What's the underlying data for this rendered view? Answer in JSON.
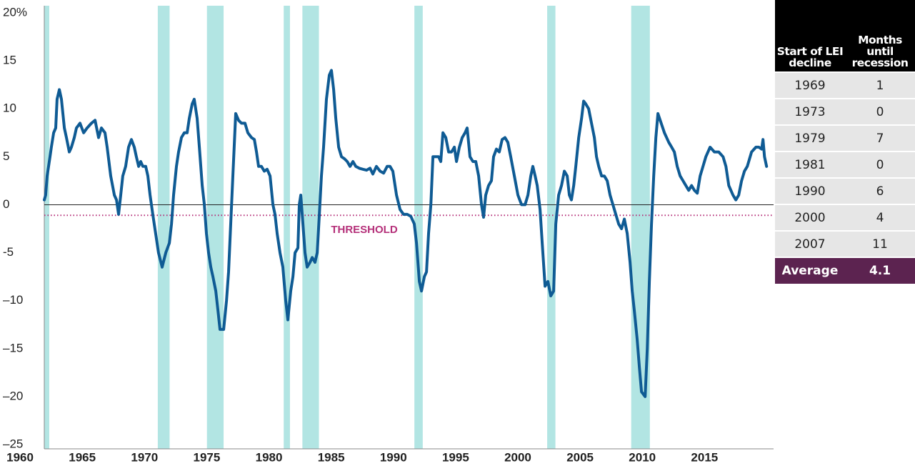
{
  "chart_data": {
    "type": "line",
    "color": "#0f5b94",
    "x": [
      1960.8,
      1960.91,
      1961.03,
      1961.26,
      1961.37,
      1961.55,
      1961.72,
      1961.83,
      1962.01,
      1962.18,
      1962.41,
      1962.58,
      1962.81,
      1962.98,
      1963.21,
      1963.38,
      1963.67,
      1963.96,
      1964.24,
      1964.59,
      1964.88,
      1965.16,
      1965.39,
      1965.68,
      1965.85,
      1966.14,
      1966.43,
      1966.6,
      1966.77,
      1966.94,
      1967.11,
      1967.34,
      1967.57,
      1967.8,
      1968.03,
      1968.2,
      1968.38,
      1968.55,
      1968.72,
      1968.95,
      1969.12,
      1969.3,
      1969.52,
      1969.75,
      1969.98,
      1970.27,
      1970.56,
      1970.85,
      1971.02,
      1971.19,
      1971.42,
      1971.59,
      1971.82,
      1972.05,
      1972.28,
      1972.45,
      1972.68,
      1972.85,
      1973.08,
      1973.26,
      1973.49,
      1973.66,
      1973.83,
      1974.0,
      1974.18,
      1974.35,
      1974.58,
      1974.75,
      1974.92,
      1975.21,
      1975.44,
      1975.61,
      1975.78,
      1975.95,
      1976.18,
      1976.41,
      1976.64,
      1976.93,
      1977.16,
      1977.45,
      1977.68,
      1977.85,
      1978.02,
      1978.25,
      1978.48,
      1978.71,
      1978.94,
      1979.17,
      1979.34,
      1979.51,
      1979.74,
      1979.97,
      1980.2,
      1980.37,
      1980.6,
      1980.78,
      1980.95,
      1981.18,
      1981.29,
      1981.41,
      1981.58,
      1981.75,
      1981.92,
      1982.15,
      1982.33,
      1982.55,
      1982.73,
      1982.9,
      1983.07,
      1983.24,
      1983.47,
      1983.7,
      1983.87,
      1984.05,
      1984.22,
      1984.45,
      1984.68,
      1984.91,
      1985.14,
      1985.37,
      1985.6,
      1985.83,
      1986.11,
      1986.4,
      1986.69,
      1986.97,
      1987.2,
      1987.49,
      1987.78,
      1988.07,
      1988.35,
      1988.58,
      1988.81,
      1989.1,
      1989.39,
      1989.67,
      1989.96,
      1990.25,
      1990.53,
      1990.71,
      1990.94,
      1991.11,
      1991.34,
      1991.51,
      1991.68,
      1991.86,
      1992.03,
      1992.26,
      1992.49,
      1992.66,
      1992.83,
      1993.06,
      1993.29,
      1993.52,
      1993.75,
      1993.92,
      1994.15,
      1994.38,
      1994.61,
      1994.78,
      1995.01,
      1995.24,
      1995.47,
      1995.7,
      1995.93,
      1996.1,
      1996.27,
      1996.5,
      1996.73,
      1996.9,
      1997.13,
      1997.36,
      1997.59,
      1997.82,
      1998.05,
      1998.28,
      1998.57,
      1998.86,
      1999.15,
      1999.43,
      1999.66,
      1999.89,
      2000.06,
      2000.24,
      2000.41,
      2000.64,
      2000.81,
      2001.04,
      2001.27,
      2001.5,
      2001.73,
      2001.9,
      2002.13,
      2002.36,
      2002.59,
      2002.82,
      2002.99,
      2003.16,
      2003.34,
      2003.51,
      2003.74,
      2003.97,
      2004.14,
      2004.31,
      2004.54,
      2004.77,
      2005.0,
      2005.17,
      2005.35,
      2005.58,
      2005.8,
      2006.03,
      2006.26,
      2006.49,
      2006.72,
      2006.95,
      2007.18,
      2007.41,
      2007.64,
      2007.87,
      2008.04,
      2008.21,
      2008.44,
      2008.62,
      2008.79,
      2009.08,
      2009.25,
      2009.42,
      2009.59,
      2009.77,
      2009.94,
      2010.11,
      2010.63,
      2010.98,
      2011.21,
      2011.43,
      2011.66,
      2011.89,
      2012.12,
      2012.35,
      2012.58,
      2012.81,
      2013.04,
      2013.27,
      2013.5,
      2013.73,
      2013.96,
      2014.3,
      2014.65,
      2014.99,
      2015.34,
      2015.57,
      2015.8,
      2016.14,
      2016.37,
      2016.6,
      2016.83,
      2017.06,
      2017.29,
      2017.63,
      2017.98,
      2018.21,
      2018.44,
      2018.55,
      2018.67,
      2018.84
    ],
    "values": [
      0.5,
      1,
      3,
      5,
      6,
      7.5,
      8,
      11,
      12,
      11,
      8,
      7,
      5.5,
      6,
      7,
      8,
      8.5,
      7.5,
      8,
      8.5,
      8.8,
      7,
      8,
      7.5,
      6,
      3,
      1,
      0.5,
      -1,
      1,
      3,
      4,
      6,
      6.8,
      6,
      5,
      4,
      4.5,
      4,
      4,
      3,
      1,
      -1,
      -3,
      -5,
      -6.5,
      -5,
      -4,
      -2,
      1,
      4,
      5.5,
      7,
      7.5,
      7.5,
      9,
      10.5,
      11,
      9,
      6,
      2,
      0,
      -3,
      -5,
      -6.5,
      -7.5,
      -9,
      -11,
      -13,
      -13,
      -10,
      -7,
      -2,
      3,
      9.5,
      8.8,
      8.5,
      8.5,
      7.5,
      7,
      6.8,
      5.5,
      4,
      4,
      3.5,
      3.7,
      3,
      0,
      -1,
      -3,
      -5,
      -6.5,
      -10,
      -12,
      -9,
      -7.5,
      -5,
      -4.5,
      0,
      1,
      -2,
      -5,
      -6.5,
      -6,
      -5.5,
      -6,
      -5,
      -1,
      3,
      6,
      11,
      13.5,
      14,
      12,
      9,
      6,
      5,
      4.8,
      4.5,
      4,
      4.5,
      4,
      3.8,
      3.7,
      3.6,
      3.8,
      3.2,
      4,
      3.5,
      3.3,
      4,
      4,
      3.5,
      1,
      -0.5,
      -1,
      -1,
      -1.2,
      -2,
      -4,
      -8,
      -9,
      -7.5,
      -7,
      -3,
      0,
      5,
      5,
      5,
      4.5,
      7.5,
      7,
      5.5,
      5.5,
      6,
      4.5,
      6,
      7,
      7.5,
      8,
      5,
      4.5,
      4.5,
      3,
      0,
      -1.3,
      1,
      2,
      2.5,
      5,
      5.8,
      5.5,
      6.8,
      7,
      6.5,
      5,
      3,
      1,
      0,
      0,
      1,
      3,
      4,
      3,
      2,
      -0.5,
      -4,
      -8.5,
      -8,
      -9.5,
      -9,
      -2,
      1,
      2,
      3.5,
      3,
      1,
      0.5,
      2,
      4,
      7,
      9,
      10.8,
      10.5,
      10,
      8.5,
      7,
      5,
      4,
      3,
      3,
      2.5,
      1,
      0,
      -1,
      -2,
      -2.5,
      -1.5,
      -3,
      -6,
      -9,
      -11,
      -14,
      -17,
      -19.5,
      -20,
      -15,
      -8,
      -2,
      3,
      7,
      9.5,
      7.5,
      6.5,
      6,
      5.5,
      4,
      3,
      2.5,
      2,
      1.5,
      2,
      1.5,
      1.2,
      3,
      4,
      5,
      6,
      5.5,
      5.5,
      5,
      4,
      2,
      1,
      0.5,
      1,
      2.5,
      3.5,
      4,
      5.5,
      6,
      6,
      5.8,
      6.8,
      5,
      4
    ],
    "xlim": [
      1960.8,
      2019.4
    ],
    "xticks": [
      1960,
      1965,
      1970,
      1975,
      1980,
      1985,
      1990,
      1995,
      2000,
      2005,
      2010,
      2015
    ],
    "ylim": [
      -25,
      20
    ],
    "yticks": [
      {
        "value": 20,
        "label": "20%"
      },
      15,
      10,
      5,
      0,
      -5,
      {
        "value": -10,
        "label": "–10"
      },
      {
        "value": -15,
        "label": "–15"
      },
      {
        "value": -20,
        "label": "–20"
      },
      {
        "value": -25,
        "label": "–25"
      }
    ],
    "grid": false,
    "recession_color": "#b2e5e3",
    "recessions": [
      {
        "start": 1960.3,
        "end": 1961.2
      },
      {
        "start": 1969.92,
        "end": 1970.87
      },
      {
        "start": 1973.87,
        "end": 1975.21
      },
      {
        "start": 1980.04,
        "end": 1980.54
      },
      {
        "start": 1981.54,
        "end": 1982.87
      },
      {
        "start": 1990.54,
        "end": 1991.21
      },
      {
        "start": 2001.21,
        "end": 2001.87
      },
      {
        "start": 2007.96,
        "end": 2009.46
      }
    ],
    "threshold": {
      "value": -1.1,
      "label": "THRESHOLD",
      "color": "#b5317a"
    }
  },
  "table": {
    "columns": [
      "Start of LEI decline",
      "Months until recession"
    ],
    "rows": [
      [
        "1969",
        "1"
      ],
      [
        "1973",
        "0"
      ],
      [
        "1979",
        "7"
      ],
      [
        "1981",
        "0"
      ],
      [
        "1990",
        "6"
      ],
      [
        "2000",
        "4"
      ],
      [
        "2007",
        "11"
      ]
    ],
    "footer": [
      "Average",
      "4.1"
    ]
  }
}
